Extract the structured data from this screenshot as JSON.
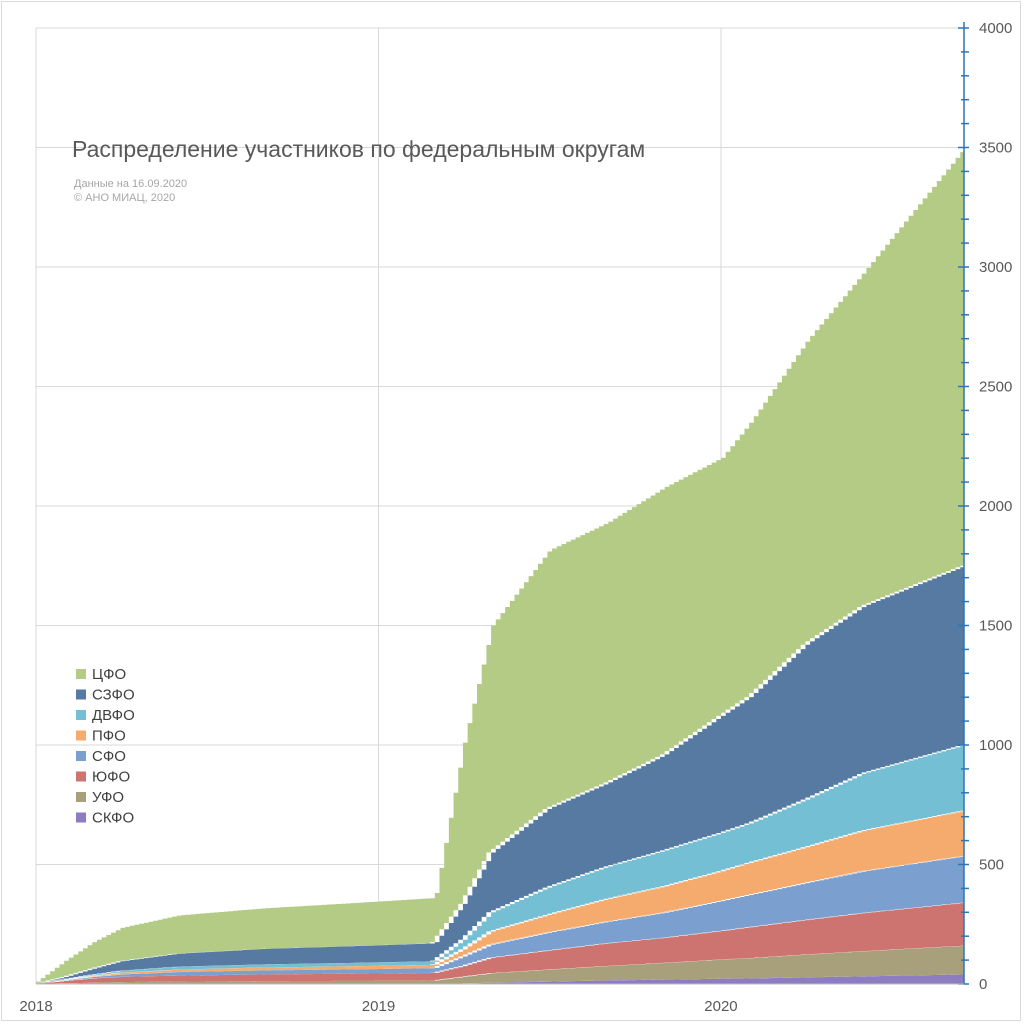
{
  "chart_data": {
    "type": "area",
    "stacked": true,
    "title": "Распределение участников по федеральным округам",
    "notes": [
      "Данные на 16.09.2020",
      "© АНО МИАЦ, 2020"
    ],
    "xlabel": "",
    "ylabel": "",
    "x_ticks": [
      "2018",
      "2019",
      "2020"
    ],
    "xlim": [
      "2018-01-01",
      "2020-09-16"
    ],
    "y_ticks": [
      0,
      500,
      1000,
      1500,
      2000,
      2500,
      3000,
      3500,
      4000
    ],
    "ylim": [
      0,
      4000
    ],
    "y_axis_side": "right",
    "grid": true,
    "legend_position": "left",
    "x": [
      "2018-01-01",
      "2018-02-01",
      "2018-03-01",
      "2018-04-01",
      "2018-06-01",
      "2018-09-01",
      "2018-12-01",
      "2019-03-01",
      "2019-04-01",
      "2019-05-01",
      "2019-07-01",
      "2019-09-01",
      "2019-11-01",
      "2020-01-01",
      "2020-02-01",
      "2020-04-01",
      "2020-06-01",
      "2020-09-16"
    ],
    "series": [
      {
        "name": "СКФО",
        "color": "#8e7cc3",
        "values": [
          0,
          0,
          0,
          0,
          0,
          0,
          0,
          0,
          2,
          5,
          10,
          15,
          18,
          22,
          23,
          28,
          32,
          40
        ]
      },
      {
        "name": "УФО",
        "color": "#a8a07a",
        "values": [
          0,
          3,
          5,
          8,
          10,
          12,
          13,
          14,
          28,
          40,
          50,
          60,
          70,
          80,
          85,
          95,
          105,
          120
        ]
      },
      {
        "name": "ЮФО",
        "color": "#cd7370",
        "values": [
          0,
          10,
          18,
          22,
          25,
          28,
          30,
          32,
          45,
          65,
          80,
          95,
          105,
          120,
          130,
          145,
          160,
          180
        ]
      },
      {
        "name": "СФО",
        "color": "#7b9fce",
        "values": [
          0,
          3,
          6,
          10,
          15,
          17,
          18,
          20,
          40,
          55,
          75,
          90,
          105,
          125,
          135,
          155,
          175,
          195
        ]
      },
      {
        "name": "ПФО",
        "color": "#f5ab6e",
        "values": [
          0,
          2,
          4,
          7,
          10,
          12,
          13,
          14,
          30,
          55,
          75,
          95,
          110,
          125,
          135,
          150,
          170,
          190
        ]
      },
      {
        "name": "ДВФО",
        "color": "#74bfd4",
        "values": [
          0,
          2,
          5,
          8,
          12,
          13,
          14,
          15,
          40,
          80,
          115,
          135,
          150,
          160,
          165,
          200,
          240,
          275
        ]
      },
      {
        "name": "СЗФО",
        "color": "#577aa2",
        "values": [
          0,
          10,
          25,
          40,
          55,
          65,
          70,
          75,
          150,
          250,
          330,
          350,
          400,
          490,
          530,
          650,
          700,
          750
        ]
      },
      {
        "name": "ЦФО",
        "color": "#b4cb86",
        "values": [
          10,
          70,
          110,
          140,
          160,
          170,
          180,
          190,
          675,
          950,
          1080,
          1090,
          1120,
          1080,
          1150,
          1270,
          1400,
          1750
        ]
      }
    ]
  }
}
